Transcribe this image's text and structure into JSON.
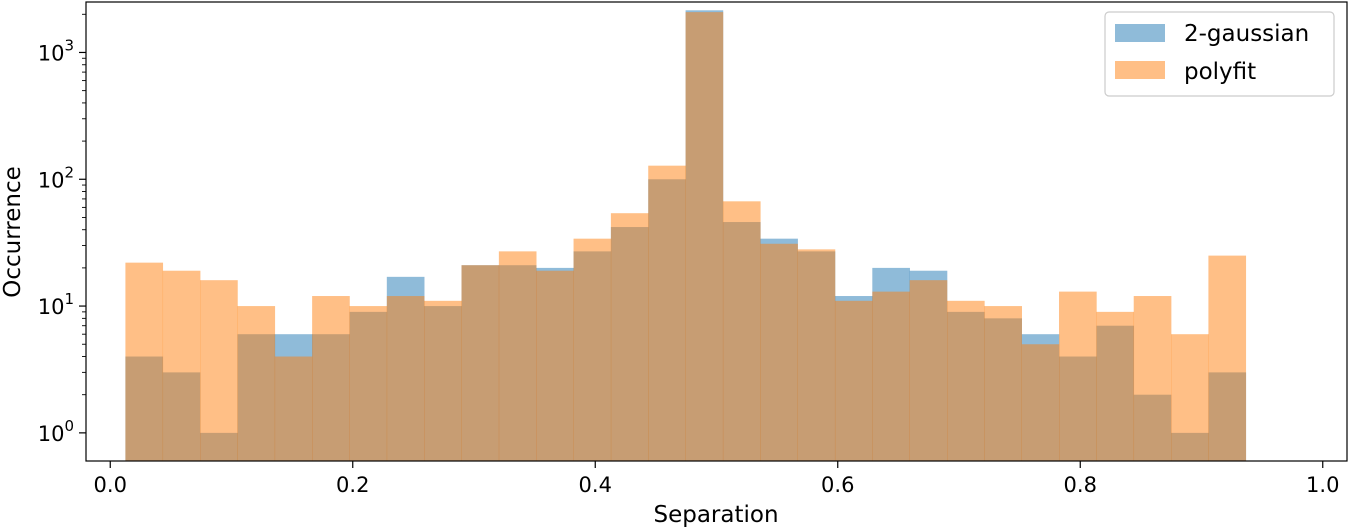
{
  "chart_data": {
    "type": "bar",
    "subtype": "overlapping-histogram",
    "title": "",
    "xlabel": "Separation",
    "ylabel": "Occurrence",
    "xlim": [
      -0.02,
      1.02
    ],
    "ylim": [
      0.6,
      2500
    ],
    "yscale": "log",
    "xticks": [
      0.0,
      0.2,
      0.4,
      0.6,
      0.8,
      1.0
    ],
    "xtick_labels": [
      "0.0",
      "0.2",
      "0.4",
      "0.6",
      "0.8",
      "1.0"
    ],
    "yticks": [
      {
        "value": 1,
        "base": "10",
        "exp": "0"
      },
      {
        "value": 10,
        "base": "10",
        "exp": "1"
      },
      {
        "value": 100,
        "base": "10",
        "exp": "2"
      },
      {
        "value": 1000,
        "base": "10",
        "exp": "3"
      }
    ],
    "grid": false,
    "legend_position": "top-right",
    "bin_edges": [
      0.0125,
      0.0433,
      0.0741,
      0.1049,
      0.1357,
      0.1665,
      0.1973,
      0.2281,
      0.2589,
      0.2897,
      0.3205,
      0.3513,
      0.3821,
      0.4129,
      0.4437,
      0.4745,
      0.5053,
      0.5361,
      0.5669,
      0.5977,
      0.6285,
      0.6593,
      0.6901,
      0.7209,
      0.7517,
      0.7825,
      0.8133,
      0.8441,
      0.8749,
      0.9057,
      0.9365,
      0.9673
    ],
    "series": [
      {
        "name": "2-gaussian",
        "color": "#1f77b4",
        "alpha": 0.5,
        "values": [
          4,
          3,
          1,
          6,
          6,
          6,
          9,
          17,
          10,
          21,
          21,
          20,
          27,
          42,
          100,
          2150,
          46,
          34,
          27,
          12,
          20,
          19,
          9,
          8,
          6,
          4,
          7,
          2,
          1,
          3,
          0
        ]
      },
      {
        "name": "polyfit",
        "color": "#ff7f0e",
        "alpha": 0.5,
        "values": [
          22,
          19,
          16,
          10,
          4,
          12,
          10,
          12,
          11,
          21,
          27,
          19,
          34,
          54,
          128,
          2080,
          67,
          31,
          28,
          11,
          13,
          16,
          11,
          10,
          5,
          13,
          9,
          12,
          6,
          25,
          0
        ]
      }
    ]
  }
}
